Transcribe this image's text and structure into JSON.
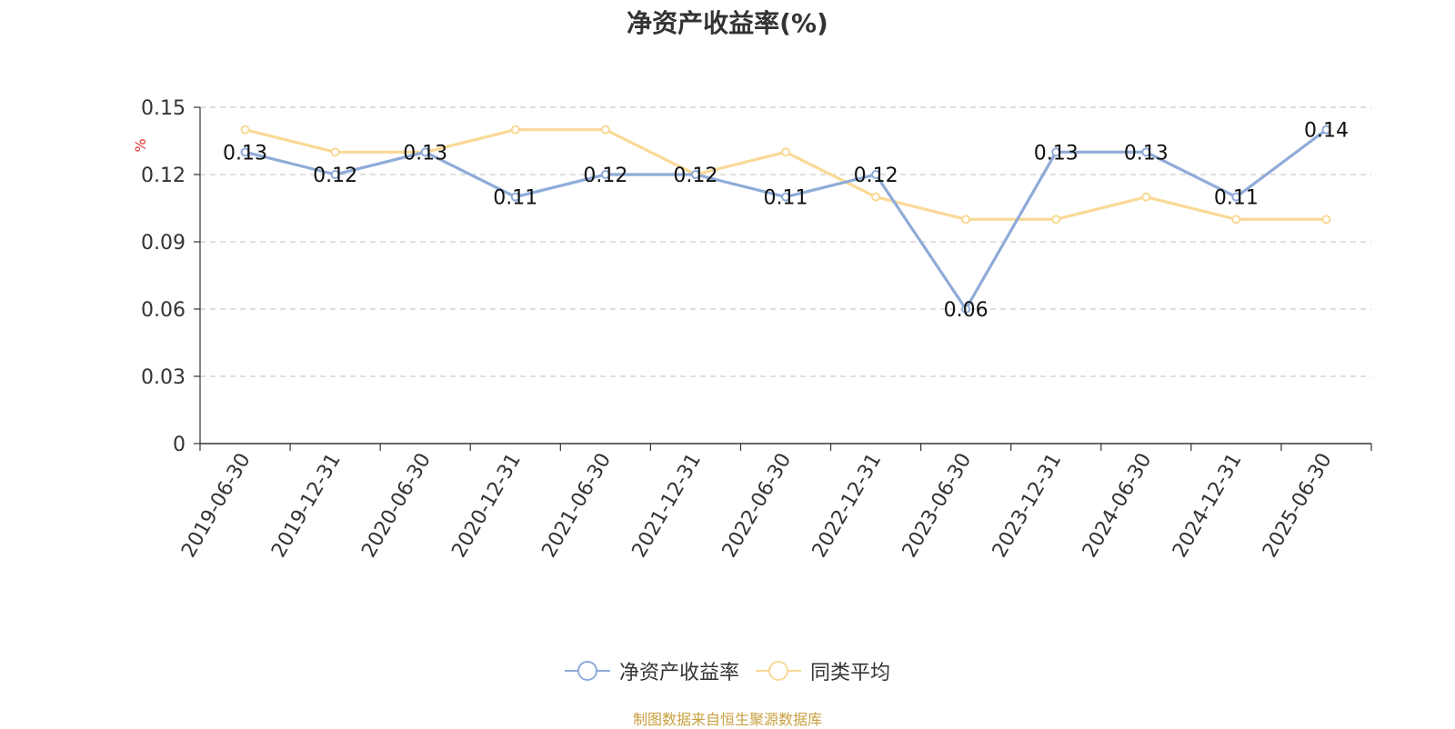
{
  "chart_data": {
    "type": "line",
    "title": "净资产收益率(%)",
    "ylabel": "%",
    "categories": [
      "2019-06-30",
      "2019-12-31",
      "2020-06-30",
      "2020-12-31",
      "2021-06-30",
      "2021-12-31",
      "2022-06-30",
      "2022-12-31",
      "2023-06-30",
      "2023-12-31",
      "2024-06-30",
      "2024-12-31",
      "2025-06-30"
    ],
    "y_ticks": [
      "0",
      "0.03",
      "0.06",
      "0.09",
      "0.12",
      "0.15"
    ],
    "ylim": [
      0,
      0.15
    ],
    "grid": true,
    "legend_position": "bottom",
    "series": [
      {
        "name": "净资产收益率",
        "color": "#8fabd8",
        "values": [
          0.13,
          0.12,
          0.13,
          0.11,
          0.12,
          0.12,
          0.11,
          0.12,
          0.06,
          0.13,
          0.13,
          0.11,
          0.14
        ],
        "labels": [
          "0.13",
          "0.12",
          "0.13",
          "0.11",
          "0.12",
          "0.12",
          "0.11",
          "0.12",
          "0.06",
          "0.13",
          "0.13",
          "0.11",
          "0.14"
        ]
      },
      {
        "name": "同类平均",
        "color": "#fad997",
        "values": [
          0.14,
          0.13,
          0.13,
          0.14,
          0.14,
          0.12,
          0.13,
          0.11,
          0.1,
          0.1,
          0.11,
          0.1,
          0.1
        ]
      }
    ]
  },
  "source_note": "制图数据来自恒生聚源数据库"
}
